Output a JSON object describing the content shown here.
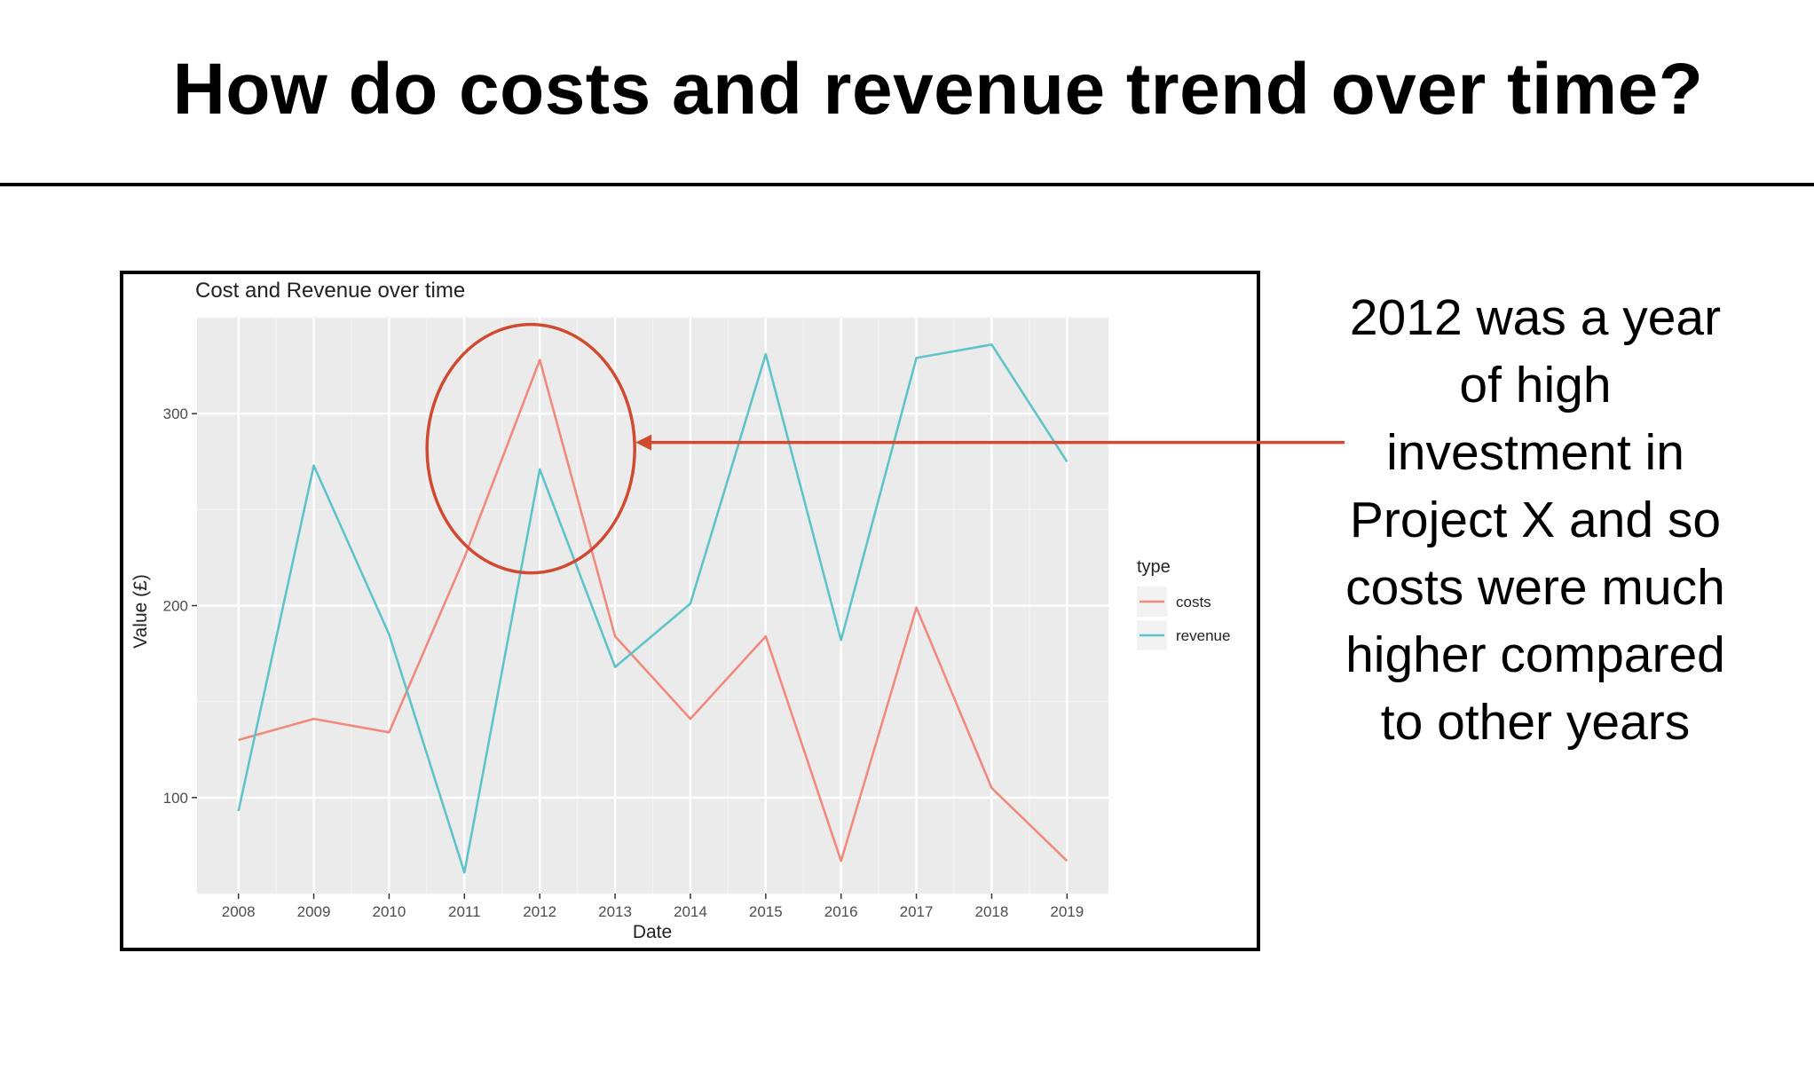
{
  "slide": {
    "title": "How do costs and revenue trend over time?",
    "callout": "2012 was a year of high investment in Project X and so costs were much higher compared to other years",
    "annotation_color": "#d04a2f"
  },
  "chart_data": {
    "type": "line",
    "title": "Cost and Revenue over time",
    "xlabel": "Date",
    "ylabel": "Value (£)",
    "x": [
      2008,
      2009,
      2010,
      2011,
      2012,
      2013,
      2014,
      2015,
      2016,
      2017,
      2018,
      2019
    ],
    "ylim": [
      50,
      350
    ],
    "yticks": [
      100,
      200,
      300
    ],
    "grid": true,
    "legend": {
      "title": "type",
      "position": "right"
    },
    "background": "#ebebeb",
    "series": [
      {
        "name": "costs",
        "color": "#f08a7d",
        "values": [
          130,
          141,
          134,
          225,
          328,
          184,
          141,
          184,
          67,
          199,
          105,
          67
        ]
      },
      {
        "name": "revenue",
        "color": "#5ec4c9",
        "values": [
          93,
          273,
          185,
          61,
          271,
          168,
          201,
          331,
          182,
          329,
          336,
          275
        ]
      }
    ],
    "highlight": {
      "x": 2012,
      "series": "costs"
    }
  }
}
